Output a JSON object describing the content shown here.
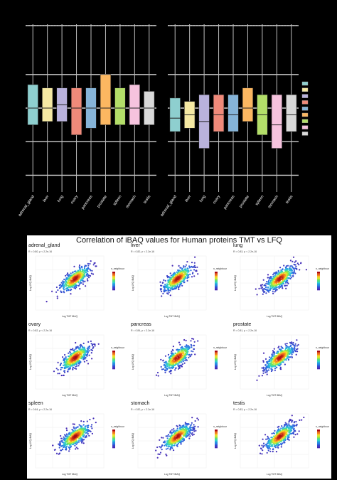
{
  "chart_data": [
    {
      "type": "box",
      "facets": [
        {
          "name": "",
          "categories": [
            "adrenal_gland",
            "liver",
            "lung",
            "ovary",
            "pancreas",
            "prostate",
            "spleen",
            "stomach",
            "testis"
          ]
        },
        {
          "name": "",
          "categories": [
            "adrenal_gland",
            "liver",
            "lung",
            "ovary",
            "pancreas",
            "prostate",
            "spleen",
            "stomach",
            "testis"
          ]
        }
      ],
      "boxes": [
        [
          {
            "q1": 1.5,
            "median": 2.0,
            "q3": 2.7
          },
          {
            "q1": 1.6,
            "median": 2.0,
            "q3": 2.6
          },
          {
            "q1": 1.6,
            "median": 2.1,
            "q3": 2.6
          },
          {
            "q1": 1.2,
            "median": 2.0,
            "q3": 2.6
          },
          {
            "q1": 1.4,
            "median": 2.0,
            "q3": 2.6
          },
          {
            "q1": 1.5,
            "median": 2.0,
            "q3": 3.0
          },
          {
            "q1": 1.5,
            "median": 2.0,
            "q3": 2.6
          },
          {
            "q1": 1.5,
            "median": 2.0,
            "q3": 2.7
          },
          {
            "q1": 1.5,
            "median": 2.0,
            "q3": 2.5
          }
        ],
        [
          {
            "q1": 1.3,
            "median": 1.7,
            "q3": 2.3
          },
          {
            "q1": 1.4,
            "median": 1.8,
            "q3": 2.2
          },
          {
            "q1": 0.8,
            "median": 1.6,
            "q3": 2.4
          },
          {
            "q1": 1.3,
            "median": 1.8,
            "q3": 2.4
          },
          {
            "q1": 1.3,
            "median": 1.8,
            "q3": 2.4
          },
          {
            "q1": 1.6,
            "median": 2.0,
            "q3": 2.6
          },
          {
            "q1": 1.2,
            "median": 1.8,
            "q3": 2.4
          },
          {
            "q1": 0.8,
            "median": 1.5,
            "q3": 2.4
          },
          {
            "q1": 1.3,
            "median": 1.8,
            "q3": 2.4
          }
        ]
      ],
      "colors": [
        "#8ecfcf",
        "#f5e9a3",
        "#b9b2dc",
        "#f08a7a",
        "#86b4d8",
        "#fbb761",
        "#b3de69",
        "#f6c3de",
        "#d9d9d9"
      ]
    },
    {
      "type": "scatter",
      "title": "Correlation of iBAQ values for Human proteins TMT vs LFQ",
      "xlabel": "Log TMT iBAQ",
      "ylabel": "Log LFQ iBAQ",
      "legend_title": "n_neighbours",
      "panels": [
        {
          "name": "adrenal_gland",
          "stat": "R = 0.80, p < 2.2e-16"
        },
        {
          "name": "liver",
          "stat": "R = 0.82, p < 2.2e-16"
        },
        {
          "name": "lung",
          "stat": "R = 0.83, p < 2.2e-16"
        },
        {
          "name": "ovary",
          "stat": "R = 0.82, p < 2.2e-16"
        },
        {
          "name": "pancreas",
          "stat": "R = 0.84, p < 2.2e-16"
        },
        {
          "name": "prostate",
          "stat": "R = 0.81, p < 2.2e-16"
        },
        {
          "name": "spleen",
          "stat": "R = 0.84, p < 2.2e-16"
        },
        {
          "name": "stomach",
          "stat": "R = 0.82, p < 2.2e-16"
        },
        {
          "name": "testis",
          "stat": "R = 0.83, p < 2.2e-16"
        }
      ]
    }
  ]
}
